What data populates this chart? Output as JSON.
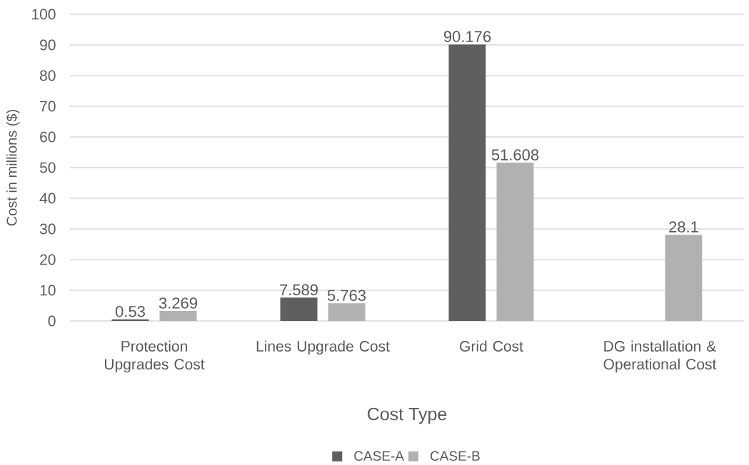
{
  "chart_data": {
    "type": "bar",
    "xlabel": "Cost Type",
    "ylabel": "Cost in millions ($)",
    "categories": [
      "Protection Upgrades Cost",
      "Lines Upgrade Cost",
      "Grid Cost",
      "DG installation & Operational Cost"
    ],
    "series": [
      {
        "name": "CASE-A",
        "color": "#5f5f5f",
        "values": [
          0.53,
          7.589,
          90.176,
          null
        ]
      },
      {
        "name": "CASE-B",
        "color": "#b1b1b1",
        "values": [
          3.269,
          5.763,
          51.608,
          28.1
        ]
      }
    ],
    "ylim": [
      0,
      100
    ],
    "yticks": [
      0,
      10,
      20,
      30,
      40,
      50,
      60,
      70,
      80,
      90,
      100
    ],
    "grid": "y",
    "legend": "bottom",
    "data_labels": true
  }
}
